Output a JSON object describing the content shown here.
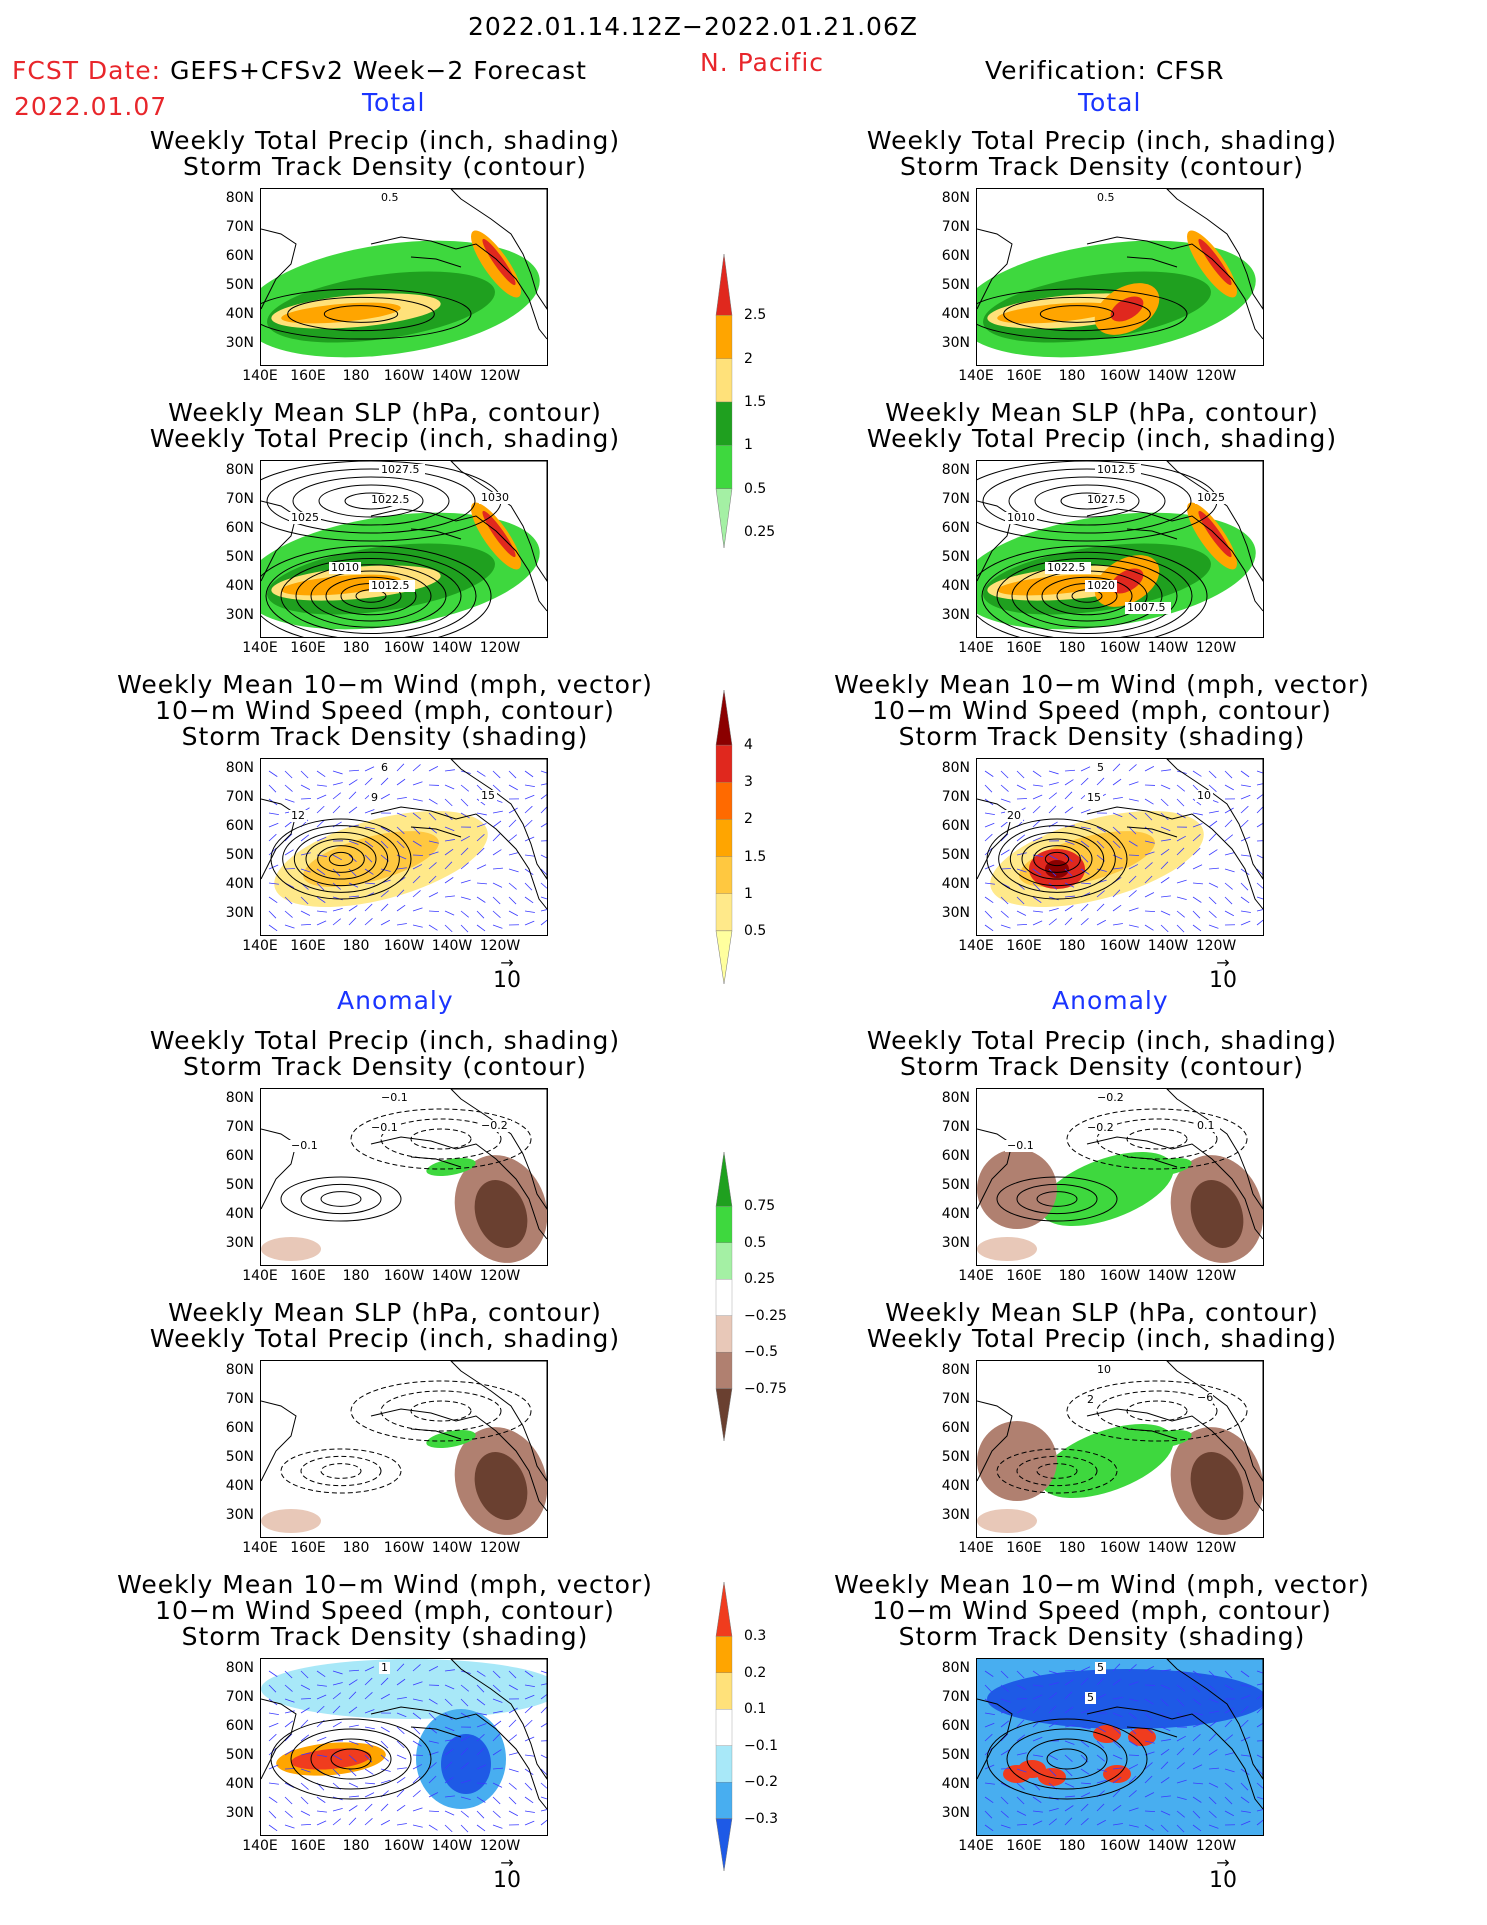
{
  "header": {
    "period": "2022.01.14.12Z−2022.01.21.06Z",
    "region": "N. Pacific",
    "fcst_date_label": "FCST Date:",
    "fcst_model": "GEFS+CFSv2 Week−2 Forecast",
    "fcst_date": "2022.01.07",
    "verification": "Verification: CFSR"
  },
  "sections": {
    "total": "Total",
    "anomaly": "Anomaly"
  },
  "titles": {
    "precip_storm": [
      "Weekly Total Precip (inch, shading)",
      "Storm Track Density (contour)"
    ],
    "slp_precip": [
      "Weekly Mean SLP (hPa, contour)",
      "Weekly Total Precip (inch, shading)"
    ],
    "wind_storm": [
      "Weekly Mean 10−m Wind (mph, vector)",
      "10−m Wind Speed (mph, contour)",
      "Storm Track Density (shading)"
    ]
  },
  "axes": {
    "lat": [
      "80N",
      "70N",
      "60N",
      "50N",
      "40N",
      "30N"
    ],
    "lon": [
      "140E",
      "160E",
      "180",
      "160W",
      "140W",
      "120W"
    ]
  },
  "vector_ref": "10",
  "colorbars": {
    "precip_total": {
      "labels": [
        "2.5",
        "2",
        "1.5",
        "1",
        "0.5",
        "0.25"
      ],
      "colors": [
        "#e0281e",
        "#ffa500",
        "#ffe17a",
        "#1fa01f",
        "#3ed83e",
        "#a4f0a4"
      ]
    },
    "storm_total": {
      "labels": [
        "4",
        "3",
        "2",
        "1.5",
        "1",
        "0.5"
      ],
      "colors": [
        "#8b0000",
        "#e0281e",
        "#ff6a00",
        "#ffa500",
        "#ffc840",
        "#ffe98a",
        "#ffff9e"
      ]
    },
    "precip_anom": {
      "labels": [
        "0.75",
        "0.5",
        "0.25",
        "−0.25",
        "−0.5",
        "−0.75"
      ],
      "colors": [
        "#1fa01f",
        "#3ed83e",
        "#a4f0a4",
        "#ffffff",
        "#e8c8b8",
        "#b08070",
        "#6a4030"
      ]
    },
    "storm_anom": {
      "labels": [
        "0.3",
        "0.2",
        "0.1",
        "−0.1",
        "−0.2",
        "−0.3"
      ],
      "colors": [
        "#f03c1e",
        "#ffa500",
        "#ffe17a",
        "#ffffff",
        "#a8e8f8",
        "#48aef0",
        "#1e5ae6"
      ]
    }
  },
  "contour_labels": {
    "fc_precip": [
      "0.5"
    ],
    "vf_precip": [
      "0.5"
    ],
    "fc_slp": [
      "1027.5",
      "1022.5",
      "1030",
      "1025",
      "1010",
      "1012.5"
    ],
    "vf_slp": [
      "1012.5",
      "1027.5",
      "1025",
      "1010",
      "1022.5",
      "1020",
      "1007.5"
    ],
    "fc_wind": [
      "6",
      "9",
      "15",
      "12"
    ],
    "vf_wind": [
      "5",
      "15",
      "10",
      "20"
    ],
    "fc_panom": [
      "−0.1",
      "−0.1",
      "−0.2",
      "−0.1"
    ],
    "vf_panom": [
      "−0.2",
      "−0.2",
      "0.1",
      "−0.1"
    ],
    "vf_slpanom": [
      "10",
      "2",
      "−6"
    ],
    "fc_wanom": [
      "1"
    ],
    "vf_wanom": [
      "5",
      "5"
    ]
  }
}
